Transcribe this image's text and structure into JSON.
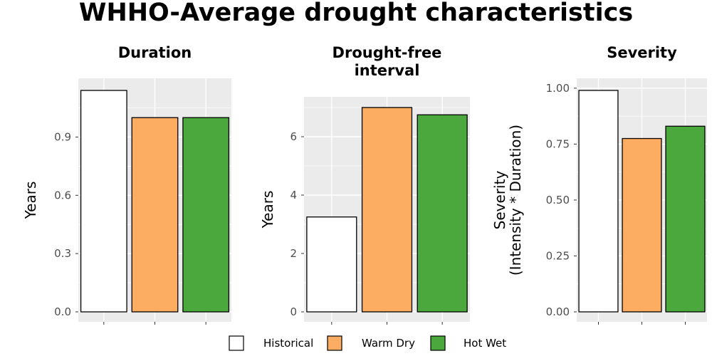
{
  "title": "WHHO-Average drought characteristics",
  "colors": {
    "Historical": "#ffffff",
    "Warm Dry": "#fdad62",
    "Hot Wet": "#4aa83d",
    "panel_bg": "#ebebeb",
    "grid": "#ffffff"
  },
  "chart_data": [
    {
      "type": "bar",
      "title": [
        "Duration"
      ],
      "ylabel": [
        "Years"
      ],
      "categories": [
        "Historical",
        "Warm Dry",
        "Hot Wet"
      ],
      "values": [
        1.14,
        1.0,
        1.0
      ],
      "ylim": [
        0,
        1.14
      ],
      "yticks": [
        0.0,
        0.3,
        0.6,
        0.9
      ],
      "ytick_labels": [
        "0.0",
        "0.3",
        "0.6",
        "0.9"
      ],
      "grid": true
    },
    {
      "type": "bar",
      "title": [
        "Drought-free",
        "interval"
      ],
      "ylabel": [
        "Years"
      ],
      "categories": [
        "Historical",
        "Warm Dry",
        "Hot Wet"
      ],
      "values": [
        3.25,
        7.0,
        6.75
      ],
      "ylim": [
        0,
        7.0
      ],
      "yticks": [
        0,
        2,
        4,
        6
      ],
      "ytick_labels": [
        "0",
        "2",
        "4",
        "6"
      ],
      "grid": true
    },
    {
      "type": "bar",
      "title": [
        "Severity"
      ],
      "ylabel": [
        "Severity",
        "(Intensity * Duration)"
      ],
      "categories": [
        "Historical",
        "Warm Dry",
        "Hot Wet"
      ],
      "values": [
        0.99,
        0.775,
        0.83
      ],
      "ylim": [
        0,
        0.99
      ],
      "yticks": [
        0.0,
        0.25,
        0.5,
        0.75,
        1.0
      ],
      "ytick_labels": [
        "0.00",
        "0.25",
        "0.50",
        "0.75",
        "1.00"
      ],
      "grid": true
    }
  ],
  "legend": {
    "position": "bottom",
    "items": [
      "Historical",
      "Warm Dry",
      "Hot Wet"
    ]
  }
}
